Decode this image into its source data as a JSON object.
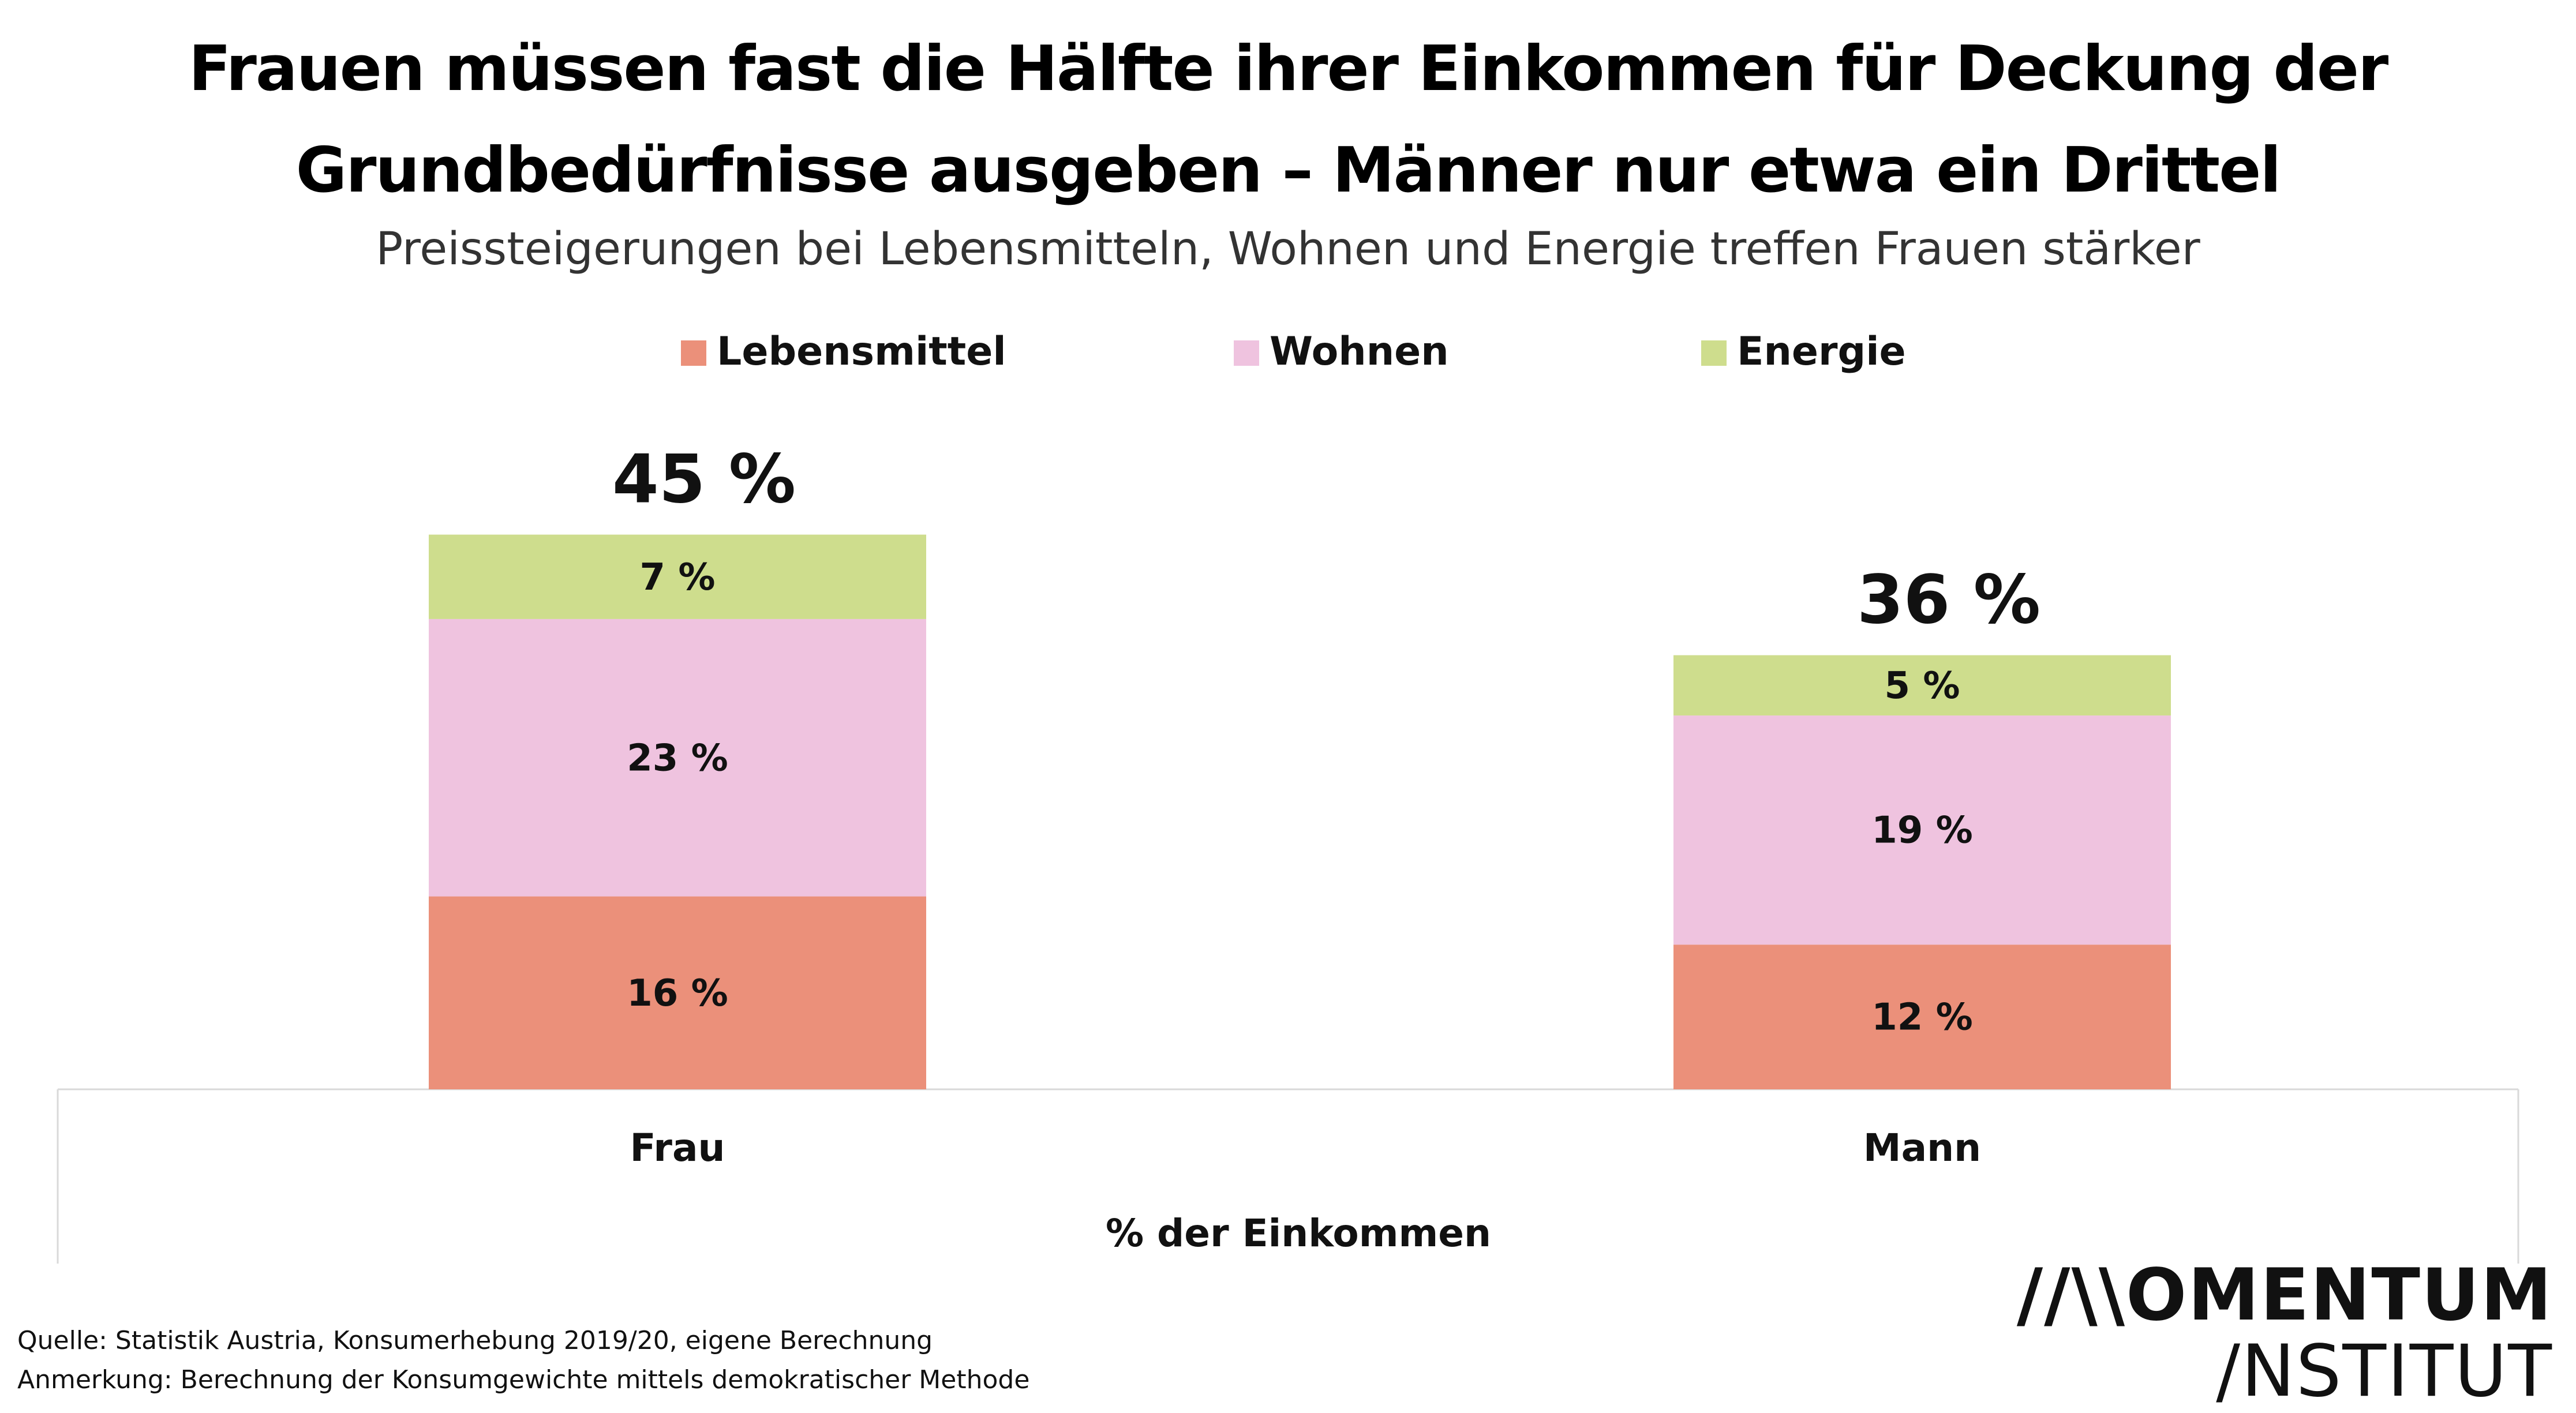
{
  "header": {
    "title_line_1": "Frauen müssen fast die Hälfte ihrer Einkommen für Deckung der",
    "title_line_2": "Grundbedürfnisse ausgeben – Männer nur etwa ein Drittel",
    "subtitle": "Preissteigerungen bei Lebensmitteln, Wohnen und Energie treffen Frauen stärker"
  },
  "chart_data": {
    "type": "bar",
    "stacked": true,
    "categories": [
      "Frau",
      "Mann"
    ],
    "series": [
      {
        "name": "Lebensmittel",
        "values": [
          16,
          12
        ],
        "labels": [
          "16 %",
          "12 %"
        ],
        "color": "#EB907A"
      },
      {
        "name": "Wohnen",
        "values": [
          23,
          19
        ],
        "labels": [
          "23 %",
          "19 %"
        ],
        "color": "#EFC3DF"
      },
      {
        "name": "Energie",
        "values": [
          7,
          5
        ],
        "labels": [
          "7 %",
          "5 %"
        ],
        "color": "#CEDD8D"
      }
    ],
    "totals": [
      45,
      36
    ],
    "total_labels": [
      "45 %",
      "36 %"
    ],
    "xlabel": "% der Einkommen",
    "ylabel": "",
    "ylim": [
      0,
      50
    ],
    "legend_position": "top-center",
    "grid": false
  },
  "footer": {
    "source": "Quelle: Statistik Austria, Konsumerhebung 2019/20, eigene Berechnung",
    "note": "Anmerkung: Berechnung der Konsumgewichte mittels demokratischer Methode",
    "logo_line_1": "//\\\\OMENTUM",
    "logo_line_2": "/NSTITUT"
  }
}
